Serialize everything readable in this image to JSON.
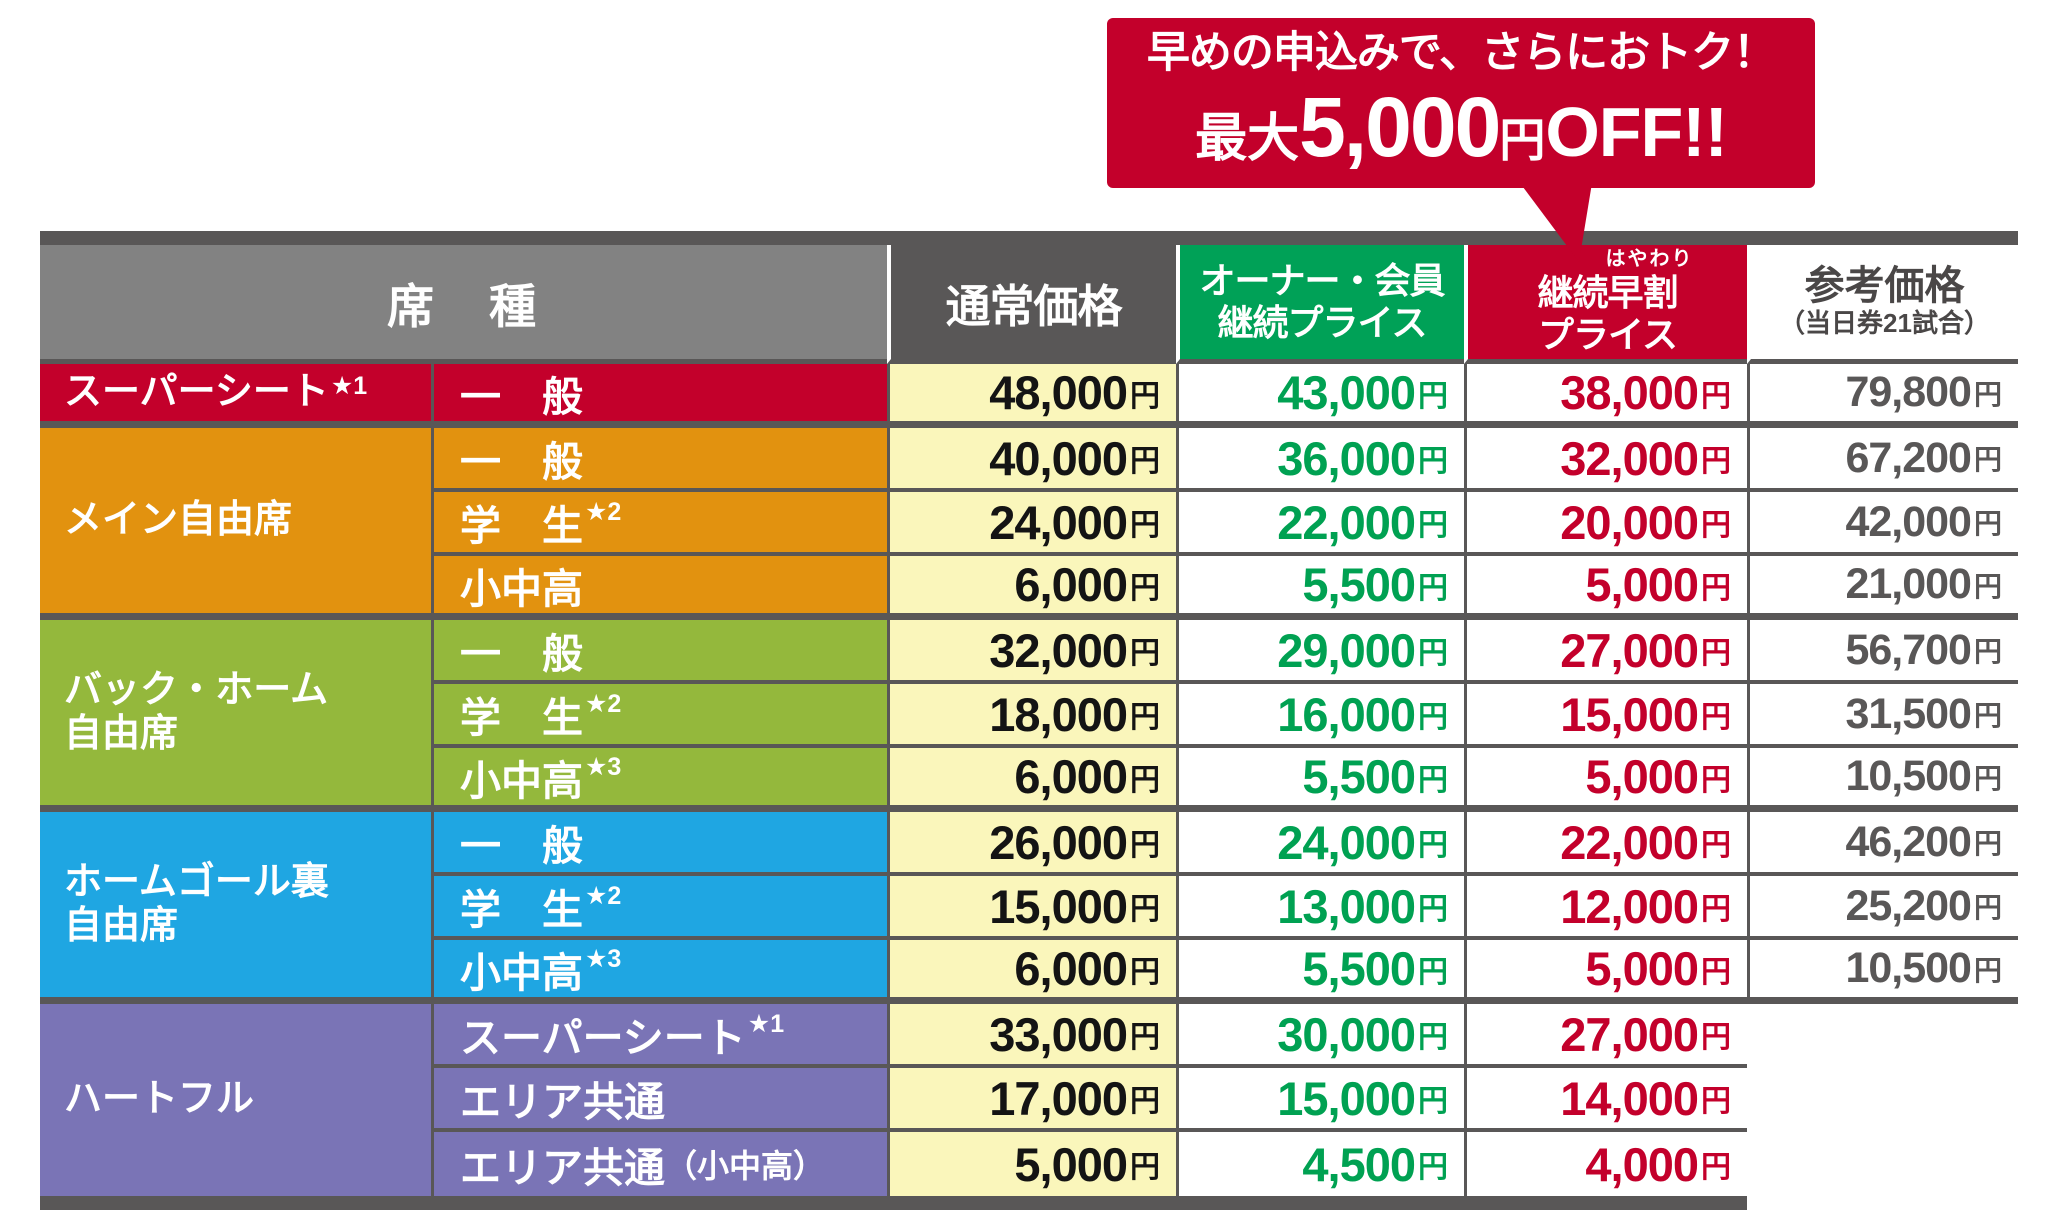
{
  "banner": {
    "line1": "早めの申込みで、さらにおトク！",
    "line2_prefix": "最大",
    "line2_amount": "5,000",
    "line2_unit": "円",
    "line2_suffix": "OFF!!",
    "bg_color": "#c3002b"
  },
  "table": {
    "unit": "円",
    "headers": {
      "seat_type": "席　種",
      "normal_price": "通常価格",
      "owner_price_line1": "オーナー・会員",
      "owner_price_line2": "継続プライス",
      "early_furigana": "はやわり",
      "early_line1": "継続早割",
      "early_line2": "プライス",
      "reference_line1": "参考価格",
      "reference_line2": "（当日券21試合）"
    },
    "groups": [
      {
        "name_lines": [
          "スーパーシート"
        ],
        "star": "★1",
        "color_key": "red",
        "color": "#c3002b",
        "rows": [
          {
            "label": "一　般",
            "star": "",
            "normal": "48,000",
            "owner": "43,000",
            "early": "38,000",
            "reference": "79,800"
          }
        ]
      },
      {
        "name_lines": [
          "メイン自由席"
        ],
        "star": "",
        "color_key": "orange",
        "color": "#e2920f",
        "rows": [
          {
            "label": "一　般",
            "star": "",
            "normal": "40,000",
            "owner": "36,000",
            "early": "32,000",
            "reference": "67,200"
          },
          {
            "label": "学　生",
            "star": "★2",
            "normal": "24,000",
            "owner": "22,000",
            "early": "20,000",
            "reference": "42,000"
          },
          {
            "label": "小中高",
            "star": "",
            "normal": "6,000",
            "owner": "5,500",
            "early": "5,000",
            "reference": "21,000"
          }
        ]
      },
      {
        "name_lines": [
          "バック・ホーム",
          "自由席"
        ],
        "star": "",
        "color_key": "green",
        "color": "#94b83c",
        "rows": [
          {
            "label": "一　般",
            "star": "",
            "normal": "32,000",
            "owner": "29,000",
            "early": "27,000",
            "reference": "56,700"
          },
          {
            "label": "学　生",
            "star": "★2",
            "normal": "18,000",
            "owner": "16,000",
            "early": "15,000",
            "reference": "31,500"
          },
          {
            "label": "小中高",
            "star": "★3",
            "normal": "6,000",
            "owner": "5,500",
            "early": "5,000",
            "reference": "10,500"
          }
        ]
      },
      {
        "name_lines": [
          "ホームゴール裏",
          "自由席"
        ],
        "star": "",
        "color_key": "blue",
        "color": "#1fa6e2",
        "rows": [
          {
            "label": "一　般",
            "star": "",
            "normal": "26,000",
            "owner": "24,000",
            "early": "22,000",
            "reference": "46,200"
          },
          {
            "label": "学　生",
            "star": "★2",
            "normal": "15,000",
            "owner": "13,000",
            "early": "12,000",
            "reference": "25,200"
          },
          {
            "label": "小中高",
            "star": "★3",
            "normal": "6,000",
            "owner": "5,500",
            "early": "5,000",
            "reference": "10,500"
          }
        ]
      },
      {
        "name_lines": [
          "ハートフル"
        ],
        "star": "",
        "color_key": "purple",
        "color": "#7a74b6",
        "rows": [
          {
            "label": "スーパーシート",
            "star": "★1",
            "normal": "33,000",
            "owner": "30,000",
            "early": "27,000",
            "reference": null
          },
          {
            "label": "エリア共通",
            "star": "",
            "normal": "17,000",
            "owner": "15,000",
            "early": "14,000",
            "reference": null
          },
          {
            "label": "エリア共通",
            "star": "",
            "paren": "（小中高）",
            "normal": "5,000",
            "owner": "4,500",
            "early": "4,000",
            "reference": null
          }
        ]
      }
    ]
  },
  "colors": {
    "accent_red": "#c3002b",
    "orange": "#e2920f",
    "green_row": "#94b83c",
    "blue": "#1fa6e2",
    "purple": "#7a74b6",
    "yellow_cell": "#faf6bb",
    "green_header": "#00a157",
    "green_price_text": "#00a152",
    "red_price_text": "#c3002b",
    "dark_gray": "#595757",
    "mid_gray": "#828282",
    "reference_text": "#595757"
  }
}
